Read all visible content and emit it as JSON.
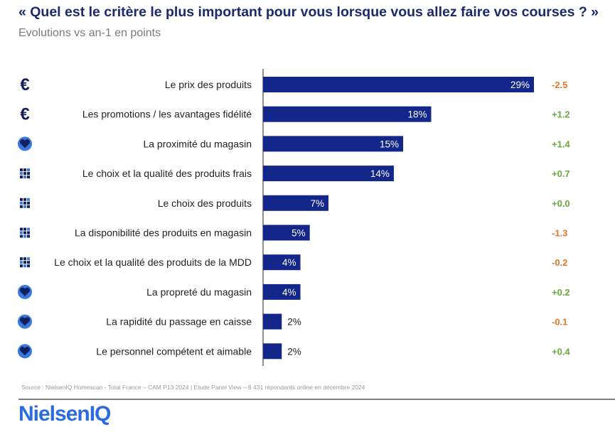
{
  "title": "« Quel est le critère le plus important pour vous lorsque vous allez faire vos courses ? »",
  "subtitle": "Evolutions vs an-1 en points",
  "source": "Source : NielsenIQ Homescan - Total France – CAM P13 2024 | Etude Panel View – 8 431 répondants online en décembre 2024",
  "logo": "NielsenIQ",
  "colors": {
    "bar": "#13268a",
    "negative": "#e0782e",
    "positive": "#6aa83a",
    "icon": "#13205e",
    "icon_ring": "#3a78e0"
  },
  "chart_data": {
    "type": "bar",
    "orientation": "horizontal",
    "xlim": [
      0,
      29
    ],
    "categories": [
      "Le prix des produits",
      "Les promotions / les avantages fidélité",
      "La proximité du magasin",
      "Le choix et la qualité des produits frais",
      "Le choix des produits",
      "La disponibilité des produits en magasin",
      "Le choix et la qualité des produits de la MDD",
      "La propreté du magasin",
      "La rapidité du passage en caisse",
      "Le personnel compétent et aimable"
    ],
    "values": [
      29,
      18,
      15,
      14,
      7,
      5,
      4,
      4,
      2,
      2
    ],
    "value_labels": [
      "29%",
      "18%",
      "15%",
      "14%",
      "7%",
      "5%",
      "4%",
      "4%",
      "2%",
      "2%"
    ],
    "evolution_labels": [
      "-2.5",
      "+1.2",
      "+1.4",
      "+0.7",
      "+0.0",
      "-1.3",
      "-0.2",
      "+0.2",
      "-0.1",
      "+0.4"
    ],
    "icons": [
      "euro-icon",
      "euro-icon",
      "heart-icon",
      "grid-icon",
      "grid-icon",
      "grid-icon",
      "grid-icon",
      "heart-icon",
      "heart-icon",
      "heart-icon"
    ]
  }
}
